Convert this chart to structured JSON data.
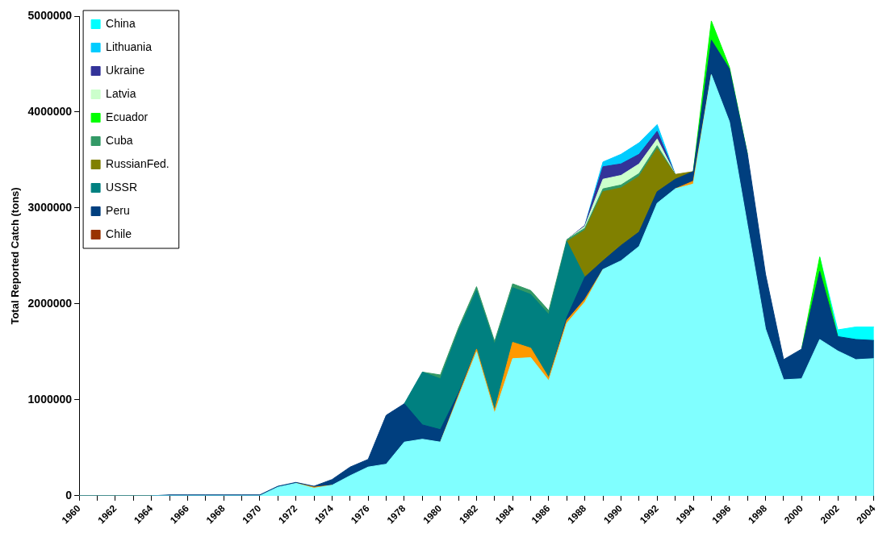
{
  "chart_data": {
    "type": "area",
    "ylabel": "Total Reported Catch (tons)",
    "stacked": true,
    "legend": "top left",
    "categories": [
      "1960",
      null,
      "1962",
      null,
      "1964",
      null,
      "1966",
      null,
      "1968",
      null,
      "1970",
      null,
      "1972",
      null,
      "1974",
      null,
      "1976",
      null,
      "1978",
      null,
      "1980",
      null,
      "1982",
      null,
      "1984",
      null,
      "1986",
      null,
      "1988",
      null,
      "1990",
      null,
      "1992",
      null,
      "1994",
      null,
      "1996",
      null,
      "1998",
      null,
      "2000",
      null,
      "2002",
      null,
      "2004"
    ],
    "ylim": [
      0,
      5000000
    ],
    "yticks": [
      0,
      1000000,
      2000000,
      3000000,
      4000000,
      5000000
    ],
    "series": [
      {
        "color": "#80ffff",
        "values": [
          0,
          0,
          0,
          0,
          0,
          0,
          0,
          0,
          0,
          0,
          0,
          90000,
          130000,
          80000,
          110000,
          210000,
          300000,
          330000,
          560000,
          590000,
          560000,
          1030000,
          1500000,
          860000,
          1430000,
          1440000,
          1200000,
          1800000,
          2020000,
          2360000,
          2450000,
          2600000,
          3050000,
          3200000,
          3250000,
          4390000,
          3900000,
          2820000,
          1740000,
          1210000,
          1220000,
          1630000,
          1510000,
          1420000,
          1430000
        ]
      },
      {
        "color": "#ff9900",
        "values": [
          null,
          null,
          null,
          null,
          null,
          null,
          null,
          null,
          null,
          null,
          null,
          null,
          0,
          10000,
          0,
          null,
          null,
          null,
          null,
          null,
          0,
          20000,
          30000,
          30000,
          170000,
          100000,
          30000,
          30000,
          30000,
          0,
          null,
          null,
          null,
          0,
          30000,
          0,
          null,
          null,
          null,
          null,
          null,
          null,
          null,
          null,
          null
        ]
      },
      {
        "name": "Chile",
        "color": "#993300",
        "values": [
          null,
          null,
          null,
          null,
          null,
          null,
          null,
          null,
          null,
          null,
          null,
          null,
          null,
          null,
          null,
          null,
          null,
          null,
          null,
          null,
          null,
          null,
          null,
          null,
          null,
          null,
          null,
          null,
          null,
          null,
          null,
          null,
          null,
          null,
          null,
          null,
          null,
          null,
          null,
          null,
          null,
          null,
          null,
          null,
          null
        ]
      },
      {
        "name": "Peru",
        "color": "#003f7f",
        "values": [
          null,
          null,
          null,
          null,
          0,
          10000,
          10000,
          10000,
          10000,
          10000,
          10000,
          10000,
          10000,
          10000,
          60000,
          90000,
          80000,
          510000,
          400000,
          150000,
          130000,
          20000,
          0,
          null,
          null,
          null,
          0,
          30000,
          230000,
          90000,
          160000,
          150000,
          120000,
          100000,
          100000,
          360000,
          550000,
          740000,
          570000,
          210000,
          310000,
          710000,
          150000,
          210000,
          190000
        ]
      },
      {
        "name": "USSR",
        "color": "#008080",
        "values": [
          null,
          null,
          null,
          null,
          null,
          null,
          null,
          null,
          null,
          null,
          null,
          null,
          null,
          null,
          null,
          null,
          null,
          null,
          0,
          550000,
          530000,
          650000,
          610000,
          690000,
          570000,
          560000,
          660000,
          790000,
          0,
          null,
          null,
          null,
          null,
          null,
          null,
          null,
          null,
          null,
          null,
          null,
          null,
          null,
          null,
          null,
          null
        ]
      },
      {
        "name": "RussianFed.",
        "color": "#808000",
        "values": [
          null,
          null,
          null,
          null,
          null,
          null,
          null,
          null,
          null,
          null,
          null,
          null,
          null,
          null,
          null,
          null,
          null,
          null,
          null,
          null,
          null,
          null,
          null,
          null,
          null,
          null,
          null,
          0,
          490000,
          720000,
          600000,
          580000,
          450000,
          50000,
          0,
          null,
          null,
          null,
          null,
          null,
          null,
          null,
          null,
          null,
          null
        ]
      },
      {
        "name": "Cuba",
        "color": "#339966",
        "values": [
          null,
          null,
          null,
          null,
          null,
          null,
          null,
          null,
          null,
          null,
          null,
          null,
          null,
          null,
          null,
          null,
          null,
          null,
          null,
          0,
          40000,
          30000,
          40000,
          30000,
          40000,
          40000,
          40000,
          20000,
          20000,
          30000,
          30000,
          30000,
          30000,
          0,
          null,
          null,
          null,
          null,
          null,
          null,
          null,
          null,
          null,
          null,
          null
        ]
      },
      {
        "name": "Ecuador",
        "color": "#00ff00",
        "values": [
          null,
          null,
          null,
          null,
          null,
          null,
          null,
          null,
          null,
          null,
          null,
          null,
          null,
          null,
          null,
          null,
          null,
          null,
          null,
          null,
          null,
          null,
          null,
          null,
          null,
          null,
          null,
          null,
          null,
          null,
          null,
          null,
          null,
          null,
          0,
          200000,
          20000,
          0,
          null,
          null,
          0,
          150000,
          0,
          null,
          null
        ]
      },
      {
        "name": "Latvia",
        "color": "#ccffcc",
        "values": [
          null,
          null,
          null,
          null,
          null,
          null,
          null,
          null,
          null,
          null,
          null,
          null,
          null,
          null,
          null,
          null,
          null,
          null,
          null,
          null,
          null,
          null,
          null,
          null,
          null,
          null,
          null,
          0,
          20000,
          100000,
          100000,
          100000,
          70000,
          0,
          null,
          null,
          null,
          null,
          null,
          null,
          null,
          null,
          null,
          null,
          null
        ]
      },
      {
        "name": "Ukraine",
        "color": "#333399",
        "values": [
          null,
          null,
          null,
          null,
          null,
          null,
          null,
          null,
          null,
          null,
          null,
          null,
          null,
          null,
          null,
          null,
          null,
          null,
          null,
          null,
          null,
          null,
          null,
          null,
          null,
          null,
          null,
          0,
          10000,
          130000,
          120000,
          100000,
          80000,
          0,
          null,
          null,
          null,
          null,
          null,
          null,
          null,
          null,
          null,
          null,
          null
        ]
      },
      {
        "name": "Lithuania",
        "color": "#00ccff",
        "values": [
          null,
          null,
          null,
          null,
          null,
          null,
          null,
          null,
          null,
          null,
          null,
          null,
          null,
          null,
          null,
          null,
          null,
          null,
          null,
          null,
          null,
          null,
          null,
          null,
          null,
          null,
          null,
          null,
          0,
          50000,
          100000,
          120000,
          70000,
          0,
          null,
          null,
          null,
          null,
          null,
          null,
          null,
          null,
          null,
          null,
          null
        ]
      },
      {
        "name": "China",
        "color": "#00ffff",
        "values": [
          null,
          null,
          null,
          null,
          null,
          null,
          null,
          null,
          null,
          null,
          null,
          null,
          null,
          null,
          null,
          null,
          null,
          null,
          null,
          null,
          null,
          null,
          null,
          null,
          null,
          null,
          null,
          null,
          null,
          null,
          null,
          null,
          null,
          null,
          null,
          null,
          null,
          null,
          null,
          null,
          null,
          0,
          70000,
          130000,
          140000
        ]
      }
    ]
  }
}
